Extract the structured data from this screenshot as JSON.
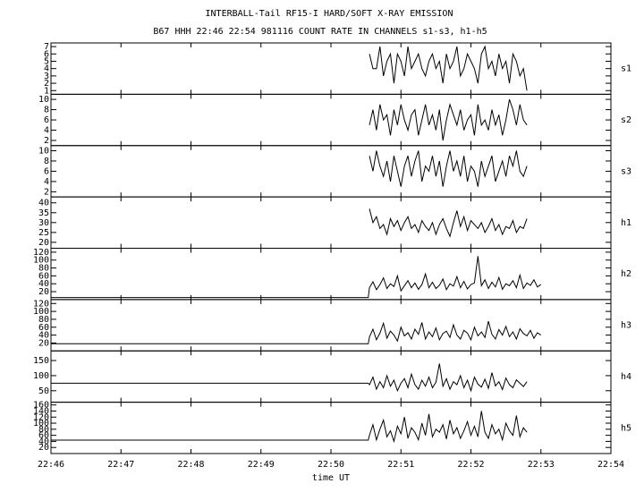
{
  "chart_data": {
    "type": "line",
    "title": "INTERBALL-Tail RF15-I HARD/SOFT X-RAY EMISSION",
    "subtitle": "B67 HHH 22:46 22:54 981116  COUNT RATE IN CHANNELS s1-s3, h1-h5",
    "xlabel": "time UT",
    "xlim": [
      "22:46",
      "22:54"
    ],
    "xticks": [
      "22:46",
      "22:47",
      "22:48",
      "22:49",
      "22:50",
      "22:51",
      "22:52",
      "22:53",
      "22:54"
    ],
    "color": "#000000",
    "panels": [
      {
        "label": "s1",
        "ylim": [
          0.5,
          7.5
        ],
        "yticks": [
          1,
          2,
          3,
          4,
          5,
          6,
          7
        ],
        "x": [
          "22:50:33",
          "22:50:36",
          "22:50:39",
          "22:50:42",
          "22:50:45",
          "22:50:48",
          "22:50:51",
          "22:50:54",
          "22:50:57",
          "22:51:00",
          "22:51:03",
          "22:51:06",
          "22:51:09",
          "22:51:12",
          "22:51:15",
          "22:51:18",
          "22:51:21",
          "22:51:24",
          "22:51:27",
          "22:51:30",
          "22:51:33",
          "22:51:36",
          "22:51:39",
          "22:51:42",
          "22:51:45",
          "22:51:48",
          "22:51:51",
          "22:51:54",
          "22:51:57",
          "22:52:00",
          "22:52:03",
          "22:52:06",
          "22:52:09",
          "22:52:12",
          "22:52:15",
          "22:52:18",
          "22:52:21",
          "22:52:24",
          "22:52:27",
          "22:52:30",
          "22:52:33",
          "22:52:36",
          "22:52:39",
          "22:52:42",
          "22:52:45",
          "22:52:48"
        ],
        "values": [
          6,
          4,
          4,
          7,
          3,
          5,
          6,
          2,
          6,
          5,
          3,
          7,
          4,
          5,
          6,
          4,
          3,
          5,
          6,
          4,
          5,
          2,
          6,
          4,
          5,
          7,
          3,
          4,
          6,
          5,
          4,
          2,
          6,
          7,
          4,
          5,
          3,
          6,
          4,
          5,
          2,
          6,
          5,
          3,
          4,
          1
        ]
      },
      {
        "label": "s2",
        "ylim": [
          1,
          11
        ],
        "yticks": [
          2,
          4,
          6,
          8,
          10
        ],
        "x": [
          "22:50:33",
          "22:50:36",
          "22:50:39",
          "22:50:42",
          "22:50:45",
          "22:50:48",
          "22:50:51",
          "22:50:54",
          "22:50:57",
          "22:51:00",
          "22:51:03",
          "22:51:06",
          "22:51:09",
          "22:51:12",
          "22:51:15",
          "22:51:18",
          "22:51:21",
          "22:51:24",
          "22:51:27",
          "22:51:30",
          "22:51:33",
          "22:51:36",
          "22:51:39",
          "22:51:42",
          "22:51:45",
          "22:51:48",
          "22:51:51",
          "22:51:54",
          "22:51:57",
          "22:52:00",
          "22:52:03",
          "22:52:06",
          "22:52:09",
          "22:52:12",
          "22:52:15",
          "22:52:18",
          "22:52:21",
          "22:52:24",
          "22:52:27",
          "22:52:30",
          "22:52:33",
          "22:52:36",
          "22:52:39",
          "22:52:42",
          "22:52:45",
          "22:52:48"
        ],
        "values": [
          5,
          8,
          4,
          9,
          6,
          7,
          3,
          8,
          5,
          9,
          6,
          4,
          7,
          8,
          3,
          6,
          9,
          5,
          7,
          4,
          8,
          2,
          6,
          9,
          7,
          5,
          8,
          4,
          6,
          7,
          3,
          9,
          5,
          6,
          4,
          8,
          5,
          7,
          3,
          6,
          10,
          8,
          5,
          9,
          6,
          5
        ]
      },
      {
        "label": "s3",
        "ylim": [
          1,
          11
        ],
        "yticks": [
          2,
          4,
          6,
          8,
          10
        ],
        "x": [
          "22:50:33",
          "22:50:36",
          "22:50:39",
          "22:50:42",
          "22:50:45",
          "22:50:48",
          "22:50:51",
          "22:50:54",
          "22:50:57",
          "22:51:00",
          "22:51:03",
          "22:51:06",
          "22:51:09",
          "22:51:12",
          "22:51:15",
          "22:51:18",
          "22:51:21",
          "22:51:24",
          "22:51:27",
          "22:51:30",
          "22:51:33",
          "22:51:36",
          "22:51:39",
          "22:51:42",
          "22:51:45",
          "22:51:48",
          "22:51:51",
          "22:51:54",
          "22:51:57",
          "22:52:00",
          "22:52:03",
          "22:52:06",
          "22:52:09",
          "22:52:12",
          "22:52:15",
          "22:52:18",
          "22:52:21",
          "22:52:24",
          "22:52:27",
          "22:52:30",
          "22:52:33",
          "22:52:36",
          "22:52:39",
          "22:52:42",
          "22:52:45",
          "22:52:48"
        ],
        "values": [
          9,
          6,
          10,
          7,
          5,
          8,
          4,
          9,
          6,
          3,
          7,
          9,
          5,
          8,
          10,
          4,
          7,
          6,
          9,
          5,
          8,
          3,
          7,
          10,
          6,
          8,
          5,
          9,
          4,
          7,
          6,
          3,
          8,
          5,
          7,
          9,
          4,
          6,
          8,
          5,
          9,
          7,
          10,
          6,
          5,
          7
        ]
      },
      {
        "label": "h1",
        "ylim": [
          17,
          43
        ],
        "yticks": [
          20,
          25,
          30,
          35,
          40
        ],
        "x": [
          "22:50:33",
          "22:50:36",
          "22:50:39",
          "22:50:42",
          "22:50:45",
          "22:50:48",
          "22:50:51",
          "22:50:54",
          "22:50:57",
          "22:51:00",
          "22:51:03",
          "22:51:06",
          "22:51:09",
          "22:51:12",
          "22:51:15",
          "22:51:18",
          "22:51:21",
          "22:51:24",
          "22:51:27",
          "22:51:30",
          "22:51:33",
          "22:51:36",
          "22:51:39",
          "22:51:42",
          "22:51:45",
          "22:51:48",
          "22:51:51",
          "22:51:54",
          "22:51:57",
          "22:52:00",
          "22:52:03",
          "22:52:06",
          "22:52:09",
          "22:52:12",
          "22:52:15",
          "22:52:18",
          "22:52:21",
          "22:52:24",
          "22:52:27",
          "22:52:30",
          "22:52:33",
          "22:52:36",
          "22:52:39",
          "22:52:42",
          "22:52:45",
          "22:52:48"
        ],
        "values": [
          37,
          30,
          33,
          27,
          29,
          24,
          32,
          28,
          31,
          26,
          30,
          33,
          27,
          29,
          25,
          31,
          28,
          26,
          30,
          24,
          29,
          32,
          27,
          23,
          30,
          36,
          28,
          33,
          26,
          31,
          29,
          27,
          30,
          25,
          28,
          32,
          26,
          29,
          24,
          28,
          27,
          31,
          25,
          28,
          27,
          32
        ]
      },
      {
        "label": "h2",
        "ylim": [
          0,
          130
        ],
        "yticks": [
          20,
          40,
          60,
          80,
          100,
          120
        ],
        "x": [
          "22:46:00",
          "22:50:32",
          "22:50:33",
          "22:50:36",
          "22:50:39",
          "22:50:42",
          "22:50:45",
          "22:50:48",
          "22:50:51",
          "22:50:54",
          "22:50:57",
          "22:51:00",
          "22:51:03",
          "22:51:06",
          "22:51:09",
          "22:51:12",
          "22:51:15",
          "22:51:18",
          "22:51:21",
          "22:51:24",
          "22:51:27",
          "22:51:30",
          "22:51:33",
          "22:51:36",
          "22:51:39",
          "22:51:42",
          "22:51:45",
          "22:51:48",
          "22:51:51",
          "22:51:54",
          "22:51:57",
          "22:52:00",
          "22:52:03",
          "22:52:06",
          "22:52:09",
          "22:52:12",
          "22:52:15",
          "22:52:18",
          "22:52:21",
          "22:52:24",
          "22:52:27",
          "22:52:30",
          "22:52:33",
          "22:52:36",
          "22:52:39",
          "22:52:42",
          "22:52:45",
          "22:52:48",
          "22:52:51",
          "22:52:54",
          "22:52:57",
          "22:53:00"
        ],
        "values": [
          5,
          5,
          30,
          45,
          25,
          38,
          55,
          28,
          40,
          33,
          60,
          22,
          35,
          48,
          30,
          42,
          26,
          38,
          65,
          30,
          44,
          28,
          36,
          52,
          25,
          40,
          34,
          58,
          30,
          46,
          27,
          38,
          42,
          110,
          35,
          50,
          28,
          44,
          32,
          56,
          26,
          40,
          35,
          48,
          30,
          62,
          28,
          42,
          36,
          50,
          32,
          38
        ]
      },
      {
        "label": "h3",
        "ylim": [
          0,
          130
        ],
        "yticks": [
          20,
          40,
          60,
          80,
          100,
          120
        ],
        "x": [
          "22:46:00",
          "22:50:32",
          "22:50:33",
          "22:50:36",
          "22:50:39",
          "22:50:42",
          "22:50:45",
          "22:50:48",
          "22:50:51",
          "22:50:54",
          "22:50:57",
          "22:51:00",
          "22:51:03",
          "22:51:06",
          "22:51:09",
          "22:51:12",
          "22:51:15",
          "22:51:18",
          "22:51:21",
          "22:51:24",
          "22:51:27",
          "22:51:30",
          "22:51:33",
          "22:51:36",
          "22:51:39",
          "22:51:42",
          "22:51:45",
          "22:51:48",
          "22:51:51",
          "22:51:54",
          "22:51:57",
          "22:52:00",
          "22:52:03",
          "22:52:06",
          "22:52:09",
          "22:52:12",
          "22:52:15",
          "22:52:18",
          "22:52:21",
          "22:52:24",
          "22:52:27",
          "22:52:30",
          "22:52:33",
          "22:52:36",
          "22:52:39",
          "22:52:42",
          "22:52:45",
          "22:52:48",
          "22:52:51",
          "22:52:54",
          "22:52:57",
          "22:53:00"
        ],
        "values": [
          18,
          18,
          35,
          55,
          28,
          45,
          70,
          32,
          50,
          40,
          25,
          60,
          38,
          46,
          30,
          55,
          42,
          72,
          30,
          48,
          36,
          58,
          28,
          44,
          50,
          34,
          66,
          40,
          30,
          52,
          45,
          28,
          60,
          38,
          48,
          34,
          75,
          42,
          30,
          54,
          40,
          62,
          36,
          48,
          30,
          56,
          44,
          38,
          52,
          32,
          46,
          40
        ]
      },
      {
        "label": "h4",
        "ylim": [
          12,
          182
        ],
        "yticks": [
          50,
          100,
          150
        ],
        "x": [
          "22:46:00",
          "22:50:32",
          "22:50:33",
          "22:50:36",
          "22:50:39",
          "22:50:42",
          "22:50:45",
          "22:50:48",
          "22:50:51",
          "22:50:54",
          "22:50:57",
          "22:51:00",
          "22:51:03",
          "22:51:06",
          "22:51:09",
          "22:51:12",
          "22:51:15",
          "22:51:18",
          "22:51:21",
          "22:51:24",
          "22:51:27",
          "22:51:30",
          "22:51:33",
          "22:51:36",
          "22:51:39",
          "22:51:42",
          "22:51:45",
          "22:51:48",
          "22:51:51",
          "22:51:54",
          "22:51:57",
          "22:52:00",
          "22:52:03",
          "22:52:06",
          "22:52:09",
          "22:52:12",
          "22:52:15",
          "22:52:18",
          "22:52:21",
          "22:52:24",
          "22:52:27",
          "22:52:30",
          "22:52:33",
          "22:52:36",
          "22:52:39",
          "22:52:42",
          "22:52:45",
          "22:52:48"
        ],
        "values": [
          75,
          75,
          70,
          95,
          55,
          80,
          60,
          100,
          65,
          85,
          50,
          75,
          90,
          60,
          105,
          70,
          55,
          85,
          65,
          95,
          60,
          78,
          140,
          65,
          90,
          55,
          80,
          70,
          100,
          60,
          85,
          50,
          95,
          72,
          62,
          88,
          58,
          110,
          66,
          80,
          54,
          92,
          70,
          60,
          86,
          75,
          64,
          80
        ]
      },
      {
        "label": "h5",
        "ylim": [
          0,
          169
        ],
        "yticks": [
          20,
          40,
          60,
          80,
          100,
          120,
          140,
          160
        ],
        "x": [
          "22:46:00",
          "22:50:32",
          "22:50:33",
          "22:50:36",
          "22:50:39",
          "22:50:42",
          "22:50:45",
          "22:50:48",
          "22:50:51",
          "22:50:54",
          "22:50:57",
          "22:51:00",
          "22:51:03",
          "22:51:06",
          "22:51:09",
          "22:51:12",
          "22:51:15",
          "22:51:18",
          "22:51:21",
          "22:51:24",
          "22:51:27",
          "22:51:30",
          "22:51:33",
          "22:51:36",
          "22:51:39",
          "22:51:42",
          "22:51:45",
          "22:51:48",
          "22:51:51",
          "22:51:54",
          "22:51:57",
          "22:52:00",
          "22:52:03",
          "22:52:06",
          "22:52:09",
          "22:52:12",
          "22:52:15",
          "22:52:18",
          "22:52:21",
          "22:52:24",
          "22:52:27",
          "22:52:30",
          "22:52:33",
          "22:52:36",
          "22:52:39",
          "22:52:42",
          "22:52:45",
          "22:52:48"
        ],
        "values": [
          44,
          44,
          60,
          95,
          45,
          80,
          110,
          55,
          75,
          40,
          90,
          65,
          120,
          50,
          85,
          70,
          45,
          100,
          60,
          130,
          55,
          80,
          70,
          95,
          48,
          110,
          65,
          85,
          50,
          75,
          105,
          60,
          90,
          55,
          140,
          70,
          50,
          95,
          65,
          80,
          45,
          100,
          75,
          60,
          125,
          55,
          85,
          70
        ]
      }
    ]
  }
}
